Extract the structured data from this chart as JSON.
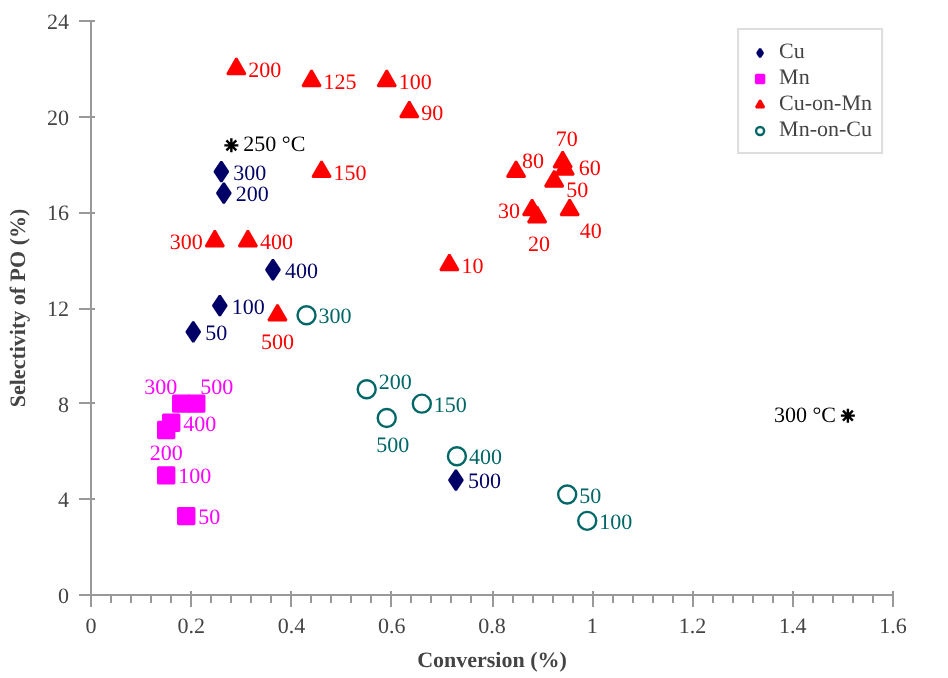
{
  "chart_data": {
    "type": "scatter",
    "xlabel": "Conversion (%)",
    "ylabel": "Selectivity of PO (%)",
    "xlim": [
      0,
      1.6
    ],
    "xticks": [
      0,
      0.2,
      0.4,
      0.6,
      0.8,
      1,
      1.2,
      1.4,
      1.6
    ],
    "ylim": [
      0,
      24
    ],
    "yticks": [
      0,
      4,
      8,
      12,
      16,
      20,
      24
    ],
    "grid": false,
    "legend": "top right",
    "series": [
      {
        "name": "Cu",
        "color": "#000066",
        "marker": "diamond",
        "x": [
          0.204,
          0.257,
          0.265,
          0.26,
          0.363,
          0.728
        ],
        "values": [
          11.0,
          12.1,
          16.8,
          17.7,
          13.6,
          4.8
        ]
      },
      {
        "name": "Mn",
        "color": "#ff00ff",
        "marker": "square",
        "x": [
          0.19,
          0.15,
          0.15,
          0.18,
          0.16,
          0.21
        ],
        "values": [
          3.3,
          5.0,
          6.9,
          8.0,
          7.2,
          8.0
        ]
      },
      {
        "name": "Cu-on-Mn",
        "color": "#ff0000",
        "marker": "triangle",
        "x": [
          0.715,
          0.89,
          0.88,
          0.955,
          0.924,
          0.945,
          0.941,
          0.848,
          0.635,
          0.59,
          0.44,
          0.46,
          0.29,
          0.247,
          0.313,
          0.372
        ],
        "values": [
          13.8,
          15.8,
          16.1,
          16.1,
          17.3,
          17.8,
          18.1,
          17.7,
          20.2,
          21.5,
          21.5,
          17.7,
          22.0,
          14.8,
          14.8,
          11.7
        ]
      },
      {
        "name": "Mn-on-Cu",
        "color": "#006666",
        "marker": "circle",
        "x": [
          0.95,
          0.99,
          0.66,
          0.55,
          0.43,
          0.73,
          0.59
        ],
        "values": [
          4.2,
          3.1,
          8.0,
          8.6,
          11.7,
          5.8,
          7.4
        ]
      },
      {
        "color": "#000000",
        "marker": "cross",
        "x": [
          0.28,
          1.51
        ],
        "values": [
          18.8,
          7.5
        ]
      }
    ],
    "annotations": [
      {
        "text": "50",
        "x": 0.204,
        "y": 11.0
      },
      {
        "text": "100",
        "x": 0.257,
        "y": 12.1
      },
      {
        "text": "200",
        "x": 0.265,
        "y": 16.8
      },
      {
        "text": "300",
        "x": 0.26,
        "y": 17.7
      },
      {
        "text": "400",
        "x": 0.363,
        "y": 13.6
      },
      {
        "text": "500",
        "x": 0.728,
        "y": 4.8
      },
      {
        "text": "50",
        "x": 0.19,
        "y": 3.3
      },
      {
        "text": "100",
        "x": 0.15,
        "y": 5.0
      },
      {
        "text": "200",
        "x": 0.15,
        "y": 6.9
      },
      {
        "text": "300",
        "x": 0.18,
        "y": 8.0
      },
      {
        "text": "400",
        "x": 0.16,
        "y": 7.2
      },
      {
        "text": "500",
        "x": 0.21,
        "y": 8.0
      },
      {
        "text": "10",
        "x": 0.715,
        "y": 13.8
      },
      {
        "text": "20",
        "x": 0.89,
        "y": 15.8
      },
      {
        "text": "30",
        "x": 0.88,
        "y": 16.1
      },
      {
        "text": "40",
        "x": 0.955,
        "y": 16.1
      },
      {
        "text": "50",
        "x": 0.924,
        "y": 17.3
      },
      {
        "text": "60",
        "x": 0.945,
        "y": 17.8
      },
      {
        "text": "70",
        "x": 0.941,
        "y": 18.1
      },
      {
        "text": "80",
        "x": 0.848,
        "y": 17.7
      },
      {
        "text": "90",
        "x": 0.635,
        "y": 20.2
      },
      {
        "text": "100",
        "x": 0.59,
        "y": 21.5
      },
      {
        "text": "125",
        "x": 0.44,
        "y": 21.5
      },
      {
        "text": "150",
        "x": 0.46,
        "y": 17.7
      },
      {
        "text": "200",
        "x": 0.29,
        "y": 22.0
      },
      {
        "text": "300",
        "x": 0.247,
        "y": 14.8
      },
      {
        "text": "400",
        "x": 0.313,
        "y": 14.8
      },
      {
        "text": "500",
        "x": 0.372,
        "y": 11.7
      },
      {
        "text": "50",
        "x": 0.95,
        "y": 4.2
      },
      {
        "text": "100",
        "x": 0.99,
        "y": 3.1
      },
      {
        "text": "150",
        "x": 0.66,
        "y": 8.0
      },
      {
        "text": "200",
        "x": 0.55,
        "y": 8.6
      },
      {
        "text": "300",
        "x": 0.43,
        "y": 11.7
      },
      {
        "text": "400",
        "x": 0.73,
        "y": 5.8
      },
      {
        "text": "500",
        "x": 0.59,
        "y": 7.4
      },
      {
        "text": "250 °C",
        "x": 0.28,
        "y": 18.8
      },
      {
        "text": "300 °C",
        "x": 1.51,
        "y": 7.5
      }
    ]
  }
}
